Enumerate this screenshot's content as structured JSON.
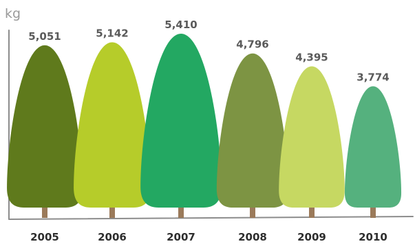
{
  "chart_data": {
    "type": "bar",
    "ylabel": "kg",
    "categories": [
      "2005",
      "2006",
      "2007",
      "2008",
      "2009",
      "2010"
    ],
    "series": [
      {
        "values": [
          5051,
          5142,
          5410,
          4796,
          4395,
          3774
        ],
        "value_labels": [
          "5,051",
          "5,142",
          "5,410",
          "4,796",
          "4,395",
          "3,774"
        ]
      }
    ],
    "colors": [
      "#5f7a1c",
      "#b6cc2a",
      "#23a862",
      "#7d9443",
      "#c6d862",
      "#55b17e"
    ],
    "trunk_color": "#9b7a5a",
    "axis_color": "#8c8c8c",
    "grid": false,
    "legend": "none"
  }
}
